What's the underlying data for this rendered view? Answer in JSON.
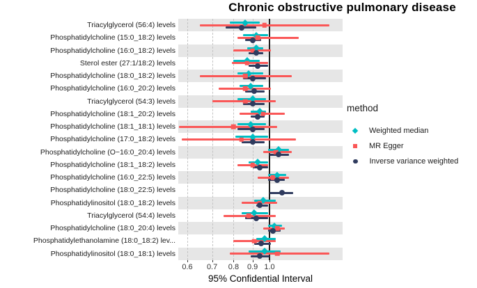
{
  "legend": {
    "title": "method",
    "items": [
      {
        "label": "Weighted median",
        "shape": "diamond",
        "color": "#00BEC3"
      },
      {
        "label": "MR Egger",
        "shape": "square",
        "color": "#FA5757"
      },
      {
        "label": "Inverse variance weighted",
        "shape": "circle",
        "color": "#2F3B5E"
      }
    ]
  },
  "colors": {
    "weighted_median": "#00BEC3",
    "mr_egger": "#FA5757",
    "ivw": "#2F3B5E",
    "stripe": "#e6e6e6",
    "gridline": "#c3c3c3",
    "reference_line": "#1f1f1f"
  },
  "chart_data": {
    "type": "forest",
    "title": "Chronic obstructive pulmonary disease",
    "xlabel": "95% Confidential Interval",
    "x_scale": "log",
    "x_ticks": [
      0.6,
      0.7,
      0.8,
      0.9,
      1.0
    ],
    "tick_labels": [
      "0.6",
      "0.7",
      "0.8",
      "0.9",
      "1.0"
    ],
    "reference_line": 1.0,
    "xlim": [
      0.55,
      1.52
    ],
    "legend_position": "right",
    "categories": [
      "Triacylglycerol (56:4) levels",
      "Phosphatidylcholine (15:0_18:2) levels",
      "Phosphatidylcholine (16:0_18:2) levels",
      "Sterol ester (27:1/18:2) levels",
      "Phosphatidylcholine (18:0_18:2) levels",
      "Phosphatidylcholine (16:0_20:2) levels",
      "Triacylglycerol (54:3) levels",
      "Phosphatidylcholine (18:1_20:2) levels",
      "Phosphatidylcholine (18:1_18:1) levels",
      "Phosphatidylcholine (17:0_18:2) levels",
      "Phosphatidylcholine (O−16:0_20:4) levels",
      "Phosphatidylcholine (18:1_18:2) levels",
      "Phosphatidylcholine (16:0_22:5) levels",
      "Phosphatidylcholine (18:0_22:5) levels",
      "Phosphatidylinositol (18:0_18:2) levels",
      "Triacylglycerol (54:4) levels",
      "Phosphatidylcholine (18:0_20:4) levels",
      "Phosphatidylethanolamine (18:0_18:2) lev...",
      "Phosphatidylinositol (18:0_18:1) levels"
    ],
    "series": [
      {
        "name": "Weighted median",
        "shape": "diamond",
        "color": "#00BEC3",
        "points": [
          {
            "est": 0.86,
            "lo": 0.78,
            "hi": 0.94
          },
          {
            "est": 0.92,
            "lo": 0.85,
            "hi": 0.99
          },
          {
            "est": 0.92,
            "lo": 0.87,
            "hi": 0.96
          },
          {
            "est": 0.87,
            "lo": 0.8,
            "hi": 0.94
          },
          {
            "est": 0.88,
            "lo": 0.82,
            "hi": 0.96
          },
          {
            "est": 0.89,
            "lo": 0.83,
            "hi": 0.96
          },
          {
            "est": 0.9,
            "lo": 0.82,
            "hi": 0.98
          },
          {
            "est": 0.94,
            "lo": 0.89,
            "hi": 0.98
          },
          {
            "est": 0.89,
            "lo": 0.82,
            "hi": 0.98
          },
          {
            "est": 0.9,
            "lo": 0.81,
            "hi": 0.99
          },
          {
            "est": 1.06,
            "lo": 0.99,
            "hi": 1.13
          },
          {
            "est": 0.93,
            "lo": 0.88,
            "hi": 0.99
          },
          {
            "est": 1.05,
            "lo": 0.99,
            "hi": 1.11
          },
          null,
          {
            "est": 0.96,
            "lo": 0.91,
            "hi": 1.04
          },
          {
            "est": 0.91,
            "lo": 0.84,
            "hi": 0.99
          },
          {
            "est": 1.03,
            "lo": 0.99,
            "hi": 1.08
          },
          {
            "est": 0.97,
            "lo": 0.92,
            "hi": 1.04
          },
          {
            "est": 0.97,
            "lo": 0.88,
            "hi": 1.07
          }
        ]
      },
      {
        "name": "MR Egger",
        "shape": "square",
        "color": "#FA5757",
        "points": [
          {
            "est": 0.97,
            "lo": 0.65,
            "hi": 1.45
          },
          {
            "est": 0.93,
            "lo": 0.82,
            "hi": 1.2
          },
          {
            "est": 0.9,
            "lo": 0.8,
            "hi": 1.01
          },
          {
            "est": 0.87,
            "lo": 0.79,
            "hi": 0.99
          },
          {
            "est": 0.86,
            "lo": 0.65,
            "hi": 1.15
          },
          {
            "est": 0.86,
            "lo": 0.73,
            "hi": 1.01
          },
          {
            "est": 0.86,
            "lo": 0.7,
            "hi": 1.04
          },
          {
            "est": 0.96,
            "lo": 0.83,
            "hi": 1.1
          },
          {
            "est": 0.8,
            "lo": 0.57,
            "hi": 1.05
          },
          {
            "est": 0.84,
            "lo": 0.58,
            "hi": 1.18
          },
          {
            "est": 1.04,
            "lo": 0.96,
            "hi": 1.15
          },
          {
            "est": 0.9,
            "lo": 0.82,
            "hi": 0.99
          },
          {
            "est": 1.02,
            "lo": 0.93,
            "hi": 1.13
          },
          null,
          {
            "est": 0.94,
            "lo": 0.84,
            "hi": 1.05
          },
          {
            "est": 0.88,
            "lo": 0.75,
            "hi": 1.04
          },
          {
            "est": 1.05,
            "lo": 0.96,
            "hi": 1.1
          },
          {
            "est": 0.91,
            "lo": 0.8,
            "hi": 1.04
          },
          {
            "est": 1.05,
            "lo": 0.78,
            "hi": 1.45
          }
        ]
      },
      {
        "name": "Inverse variance weighted",
        "shape": "circle",
        "color": "#2F3B5E",
        "points": [
          {
            "est": 0.84,
            "lo": 0.76,
            "hi": 0.92
          },
          {
            "est": 0.9,
            "lo": 0.86,
            "hi": 0.95
          },
          {
            "est": 0.92,
            "lo": 0.88,
            "hi": 0.96
          },
          {
            "est": 0.93,
            "lo": 0.88,
            "hi": 0.99
          },
          {
            "est": 0.9,
            "lo": 0.85,
            "hi": 0.98
          },
          {
            "est": 0.91,
            "lo": 0.86,
            "hi": 0.97
          },
          {
            "est": 0.9,
            "lo": 0.85,
            "hi": 0.97
          },
          {
            "est": 0.93,
            "lo": 0.89,
            "hi": 0.97
          },
          {
            "est": 0.9,
            "lo": 0.82,
            "hi": 0.97
          },
          {
            "est": 0.9,
            "lo": 0.84,
            "hi": 0.97
          },
          {
            "est": 1.06,
            "lo": 1.0,
            "hi": 1.13
          },
          {
            "est": 0.94,
            "lo": 0.9,
            "hi": 0.99
          },
          {
            "est": 1.05,
            "lo": 0.99,
            "hi": 1.1
          },
          {
            "est": 1.08,
            "lo": 1.0,
            "hi": 1.16
          },
          {
            "est": 0.94,
            "lo": 0.92,
            "hi": 0.99
          },
          {
            "est": 0.92,
            "lo": 0.86,
            "hi": 0.99
          },
          {
            "est": 1.02,
            "lo": 0.99,
            "hi": 1.07
          },
          {
            "est": 0.95,
            "lo": 0.91,
            "hi": 1.01
          },
          {
            "est": 0.94,
            "lo": 0.89,
            "hi": 1.0
          }
        ]
      }
    ]
  }
}
